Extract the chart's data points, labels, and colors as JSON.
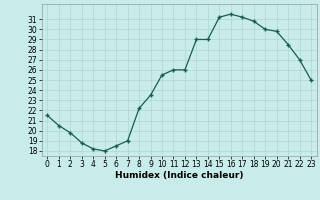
{
  "x": [
    0,
    1,
    2,
    3,
    4,
    5,
    6,
    7,
    8,
    9,
    10,
    11,
    12,
    13,
    14,
    15,
    16,
    17,
    18,
    19,
    20,
    21,
    22,
    23
  ],
  "y": [
    21.5,
    20.5,
    19.8,
    18.8,
    18.2,
    18.0,
    18.5,
    19.0,
    22.2,
    23.5,
    25.5,
    26.0,
    26.0,
    29.0,
    29.0,
    31.2,
    31.5,
    31.2,
    30.8,
    30.0,
    29.8,
    28.5,
    27.0,
    25.0
  ],
  "xlabel": "Humidex (Indice chaleur)",
  "xlim": [
    -0.5,
    23.5
  ],
  "ylim": [
    17.5,
    32.5
  ],
  "yticks": [
    18,
    19,
    20,
    21,
    22,
    23,
    24,
    25,
    26,
    27,
    28,
    29,
    30,
    31
  ],
  "xticks": [
    0,
    1,
    2,
    3,
    4,
    5,
    6,
    7,
    8,
    9,
    10,
    11,
    12,
    13,
    14,
    15,
    16,
    17,
    18,
    19,
    20,
    21,
    22,
    23
  ],
  "line_color": "#1a5c52",
  "marker": "+",
  "marker_size": 3,
  "marker_edge_width": 1.0,
  "line_width": 0.9,
  "bg_color": "#c8ecea",
  "grid_color": "#afd4d2",
  "label_fontsize": 6.5,
  "tick_fontsize": 5.5
}
